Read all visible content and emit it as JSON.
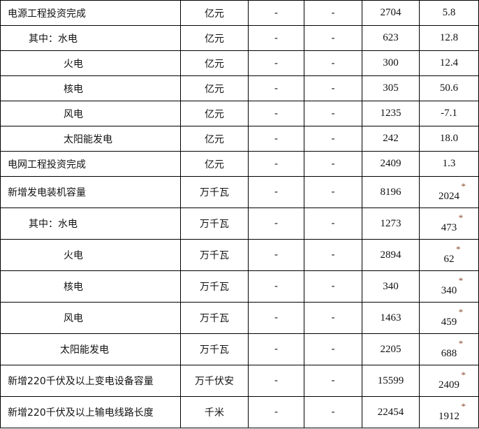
{
  "table": {
    "rows": [
      {
        "name": "电源工程投资完成",
        "unit": "亿元",
        "c3": "-",
        "c4": "-",
        "value": "2704",
        "growth": "5.8",
        "indent": "ind0",
        "starred": false
      },
      {
        "name": "其中：水电",
        "unit": "亿元",
        "c3": "-",
        "c4": "-",
        "value": "623",
        "growth": "12.8",
        "indent": "ind1",
        "starred": false
      },
      {
        "name": "火电",
        "unit": "亿元",
        "c3": "-",
        "c4": "-",
        "value": "300",
        "growth": "12.4",
        "indent": "ind2",
        "starred": false
      },
      {
        "name": "核电",
        "unit": "亿元",
        "c3": "-",
        "c4": "-",
        "value": "305",
        "growth": "50.6",
        "indent": "ind2",
        "starred": false
      },
      {
        "name": "风电",
        "unit": "亿元",
        "c3": "-",
        "c4": "-",
        "value": "1235",
        "growth": "-7.1",
        "indent": "ind2",
        "starred": false
      },
      {
        "name": "太阳能发电",
        "unit": "亿元",
        "c3": "-",
        "c4": "-",
        "value": "242",
        "growth": "18.0",
        "indent": "ind2",
        "starred": false
      },
      {
        "name": "电网工程投资完成",
        "unit": "亿元",
        "c3": "-",
        "c4": "-",
        "value": "2409",
        "growth": "1.3",
        "indent": "ind0",
        "starred": false
      },
      {
        "name": "新增发电装机容量",
        "unit": "万千瓦",
        "c3": "-",
        "c4": "-",
        "value": "8196",
        "growth": "2024",
        "indent": "ind0",
        "starred": true
      },
      {
        "name": "其中：水电",
        "unit": "万千瓦",
        "c3": "-",
        "c4": "-",
        "value": "1273",
        "growth": "473",
        "indent": "ind1",
        "starred": true
      },
      {
        "name": "火电",
        "unit": "万千瓦",
        "c3": "-",
        "c4": "-",
        "value": "2894",
        "growth": "62",
        "indent": "ind2",
        "starred": true
      },
      {
        "name": "核电",
        "unit": "万千瓦",
        "c3": "-",
        "c4": "-",
        "value": "340",
        "growth": "340",
        "indent": "ind2",
        "starred": true
      },
      {
        "name": "风电",
        "unit": "万千瓦",
        "c3": "-",
        "c4": "-",
        "value": "1463",
        "growth": "459",
        "indent": "ind2",
        "starred": true
      },
      {
        "name": "太阳能发电",
        "unit": "万千瓦",
        "c3": "-",
        "c4": "-",
        "value": "2205",
        "growth": "688",
        "indent": "ind2b",
        "starred": true
      },
      {
        "name": "新增220千伏及以上变电设备容量",
        "unit": "万千伏安",
        "c3": "-",
        "c4": "-",
        "value": "15599",
        "growth": "2409",
        "indent": "ind0",
        "starred": true
      },
      {
        "name": "新增220千伏及以上输电线路长度",
        "unit": "千米",
        "c3": "-",
        "c4": "-",
        "value": "22454",
        "growth": "1912",
        "indent": "ind0",
        "starred": true
      }
    ],
    "star_symbol": "*",
    "star_color": "#8b4a2b"
  }
}
